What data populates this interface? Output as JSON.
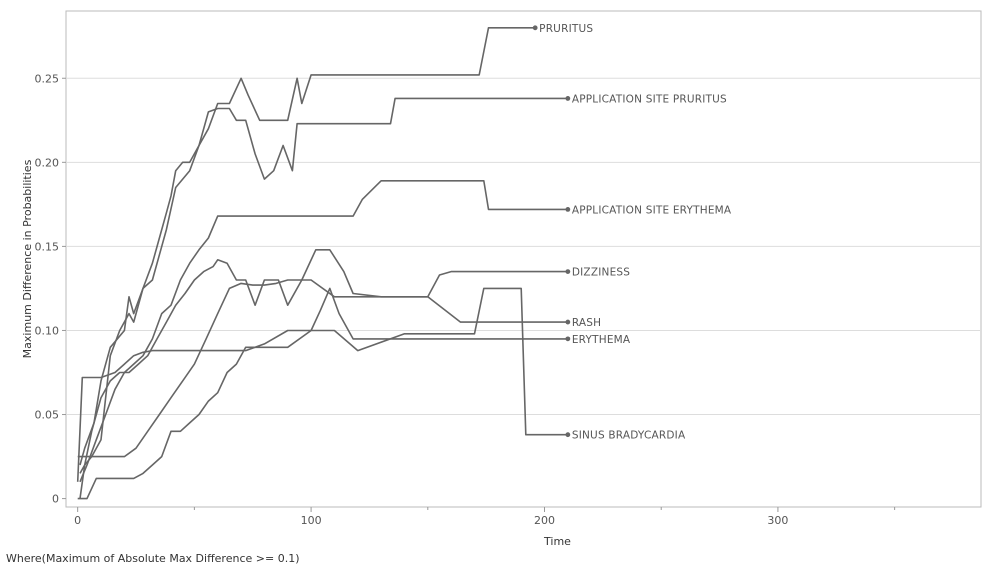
{
  "footnote": "Where(Maximum of Absolute Max Difference >= 0.1)",
  "chart_data": {
    "type": "line",
    "title": "",
    "xlabel": "Time",
    "ylabel": "Maximum Difference in Probabilities",
    "xlim": [
      -5,
      387
    ],
    "ylim": [
      -0.005,
      0.29
    ],
    "xticks": [
      0,
      100,
      200,
      300
    ],
    "xtick_labels": [
      "0",
      "100",
      "200",
      "300"
    ],
    "yticks": [
      0,
      0.05,
      0.1,
      0.15,
      0.2,
      0.25
    ],
    "ytick_labels": [
      "0",
      "0.05",
      "0.10",
      "0.15",
      "0.20",
      "0.25"
    ],
    "grid": {
      "horizontal": true,
      "vertical": false
    },
    "line_color": "#666666",
    "grid_color": "#dddddd",
    "series": [
      {
        "name": "PRURITUS",
        "x": [
          1,
          3,
          7,
          10,
          14,
          20,
          22,
          24,
          28,
          32,
          35,
          38,
          40,
          42,
          45,
          48,
          52,
          56,
          60,
          65,
          70,
          73,
          78,
          84,
          90,
          94,
          96,
          100,
          110,
          130,
          150,
          172,
          176,
          196
        ],
        "y": [
          0.02,
          0.03,
          0.045,
          0.07,
          0.09,
          0.1,
          0.12,
          0.11,
          0.125,
          0.14,
          0.155,
          0.17,
          0.18,
          0.195,
          0.2,
          0.2,
          0.21,
          0.22,
          0.235,
          0.235,
          0.25,
          0.24,
          0.225,
          0.225,
          0.225,
          0.25,
          0.235,
          0.252,
          0.252,
          0.252,
          0.252,
          0.252,
          0.28,
          0.28
        ]
      },
      {
        "name": "APPLICATION SITE PRURITUS",
        "x": [
          1,
          3,
          6,
          10,
          14,
          18,
          22,
          24,
          28,
          32,
          35,
          38,
          42,
          45,
          48,
          52,
          56,
          60,
          65,
          68,
          72,
          76,
          80,
          84,
          88,
          92,
          94,
          100,
          110,
          120,
          134,
          136,
          160,
          190,
          210
        ],
        "y": [
          0.015,
          0.02,
          0.025,
          0.035,
          0.085,
          0.1,
          0.11,
          0.105,
          0.125,
          0.13,
          0.145,
          0.16,
          0.185,
          0.19,
          0.195,
          0.21,
          0.23,
          0.232,
          0.232,
          0.225,
          0.225,
          0.205,
          0.19,
          0.195,
          0.21,
          0.195,
          0.223,
          0.223,
          0.223,
          0.223,
          0.223,
          0.238,
          0.238,
          0.238,
          0.238
        ]
      },
      {
        "name": "APPLICATION SITE ERYTHEMA",
        "x": [
          1,
          4,
          8,
          12,
          16,
          20,
          24,
          28,
          32,
          36,
          40,
          44,
          48,
          52,
          56,
          60,
          80,
          100,
          118,
          122,
          130,
          140,
          160,
          174,
          176,
          190,
          210
        ],
        "y": [
          0.01,
          0.02,
          0.035,
          0.05,
          0.065,
          0.075,
          0.08,
          0.085,
          0.095,
          0.11,
          0.115,
          0.13,
          0.14,
          0.148,
          0.155,
          0.168,
          0.168,
          0.168,
          0.168,
          0.178,
          0.189,
          0.189,
          0.189,
          0.189,
          0.172,
          0.172,
          0.172
        ]
      },
      {
        "name": "DIZZINESS",
        "x": [
          0,
          2,
          6,
          10,
          15,
          20,
          25,
          30,
          35,
          40,
          45,
          50,
          55,
          60,
          65,
          70,
          75,
          80,
          85,
          90,
          95,
          100,
          110,
          120,
          130,
          150,
          155,
          160,
          170,
          190,
          210
        ],
        "y": [
          0.025,
          0.025,
          0.025,
          0.025,
          0.025,
          0.025,
          0.03,
          0.04,
          0.05,
          0.06,
          0.07,
          0.08,
          0.095,
          0.11,
          0.125,
          0.128,
          0.127,
          0.127,
          0.128,
          0.13,
          0.13,
          0.13,
          0.12,
          0.12,
          0.12,
          0.12,
          0.133,
          0.135,
          0.135,
          0.135,
          0.135
        ]
      },
      {
        "name": "RASH",
        "x": [
          1,
          3,
          6,
          10,
          14,
          18,
          22,
          26,
          30,
          34,
          38,
          42,
          46,
          50,
          54,
          58,
          60,
          64,
          68,
          72,
          76,
          80,
          86,
          90,
          96,
          102,
          108,
          114,
          118,
          130,
          150,
          164,
          168,
          190,
          210
        ],
        "y": [
          0.0,
          0.02,
          0.04,
          0.06,
          0.07,
          0.075,
          0.075,
          0.08,
          0.085,
          0.095,
          0.105,
          0.115,
          0.122,
          0.13,
          0.135,
          0.138,
          0.142,
          0.14,
          0.13,
          0.13,
          0.115,
          0.13,
          0.13,
          0.115,
          0.13,
          0.148,
          0.148,
          0.135,
          0.122,
          0.12,
          0.12,
          0.105,
          0.105,
          0.105,
          0.105
        ]
      },
      {
        "name": "ERYTHEMA",
        "x": [
          0,
          4,
          8,
          12,
          16,
          20,
          24,
          28,
          32,
          36,
          40,
          44,
          48,
          52,
          56,
          60,
          64,
          68,
          72,
          80,
          90,
          100,
          104,
          108,
          112,
          118,
          124,
          140,
          160,
          180,
          200,
          210
        ],
        "y": [
          0.0,
          0.0,
          0.012,
          0.012,
          0.012,
          0.012,
          0.012,
          0.015,
          0.02,
          0.025,
          0.04,
          0.04,
          0.045,
          0.05,
          0.058,
          0.063,
          0.075,
          0.08,
          0.09,
          0.09,
          0.09,
          0.1,
          0.112,
          0.125,
          0.11,
          0.095,
          0.095,
          0.095,
          0.095,
          0.095,
          0.095,
          0.095
        ]
      },
      {
        "name": "SINUS BRADYCARDIA",
        "x": [
          0,
          2,
          6,
          10,
          16,
          20,
          24,
          28,
          32,
          36,
          40,
          44,
          48,
          52,
          56,
          60,
          64,
          68,
          72,
          76,
          80,
          90,
          100,
          110,
          120,
          140,
          150,
          170,
          174,
          184,
          190,
          192,
          200,
          210
        ],
        "y": [
          0.01,
          0.072,
          0.072,
          0.072,
          0.075,
          0.08,
          0.085,
          0.087,
          0.088,
          0.088,
          0.088,
          0.088,
          0.088,
          0.088,
          0.088,
          0.088,
          0.088,
          0.088,
          0.088,
          0.09,
          0.092,
          0.1,
          0.1,
          0.1,
          0.088,
          0.098,
          0.098,
          0.098,
          0.125,
          0.125,
          0.125,
          0.038,
          0.038,
          0.038
        ]
      }
    ]
  }
}
